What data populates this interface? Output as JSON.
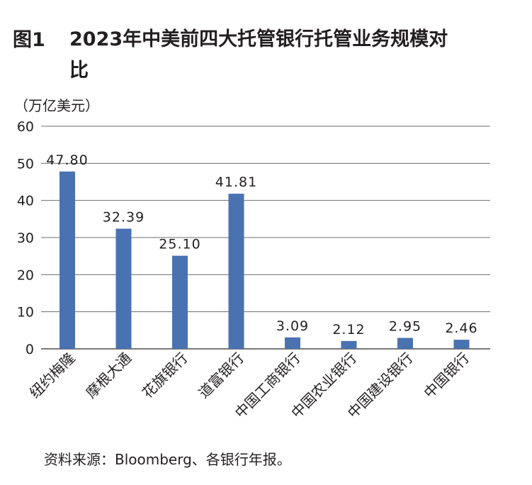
{
  "figure": {
    "label": "图1",
    "title": "2023年中美前四大托管银行托管业务规模对比",
    "unit": "（万亿美元）",
    "source": "资料来源：Bloomberg、各银行年报。"
  },
  "chart_data": {
    "type": "bar",
    "categories": [
      "纽约梅隆",
      "摩根大通",
      "花旗银行",
      "道富银行",
      "中国工商银行",
      "中国农业银行",
      "中国建设银行",
      "中国银行"
    ],
    "values": [
      47.8,
      32.39,
      25.1,
      41.81,
      3.09,
      2.12,
      2.95,
      2.46
    ],
    "value_labels": [
      "47.80",
      "32.39",
      "25.10",
      "41.81",
      "3.09",
      "2.12",
      "2.95",
      "2.46"
    ],
    "yticks": [
      "0",
      "10",
      "20",
      "30",
      "40",
      "50",
      "60"
    ],
    "ylim": [
      0,
      60
    ],
    "grid": true,
    "bar_color": "#4a72b0"
  }
}
